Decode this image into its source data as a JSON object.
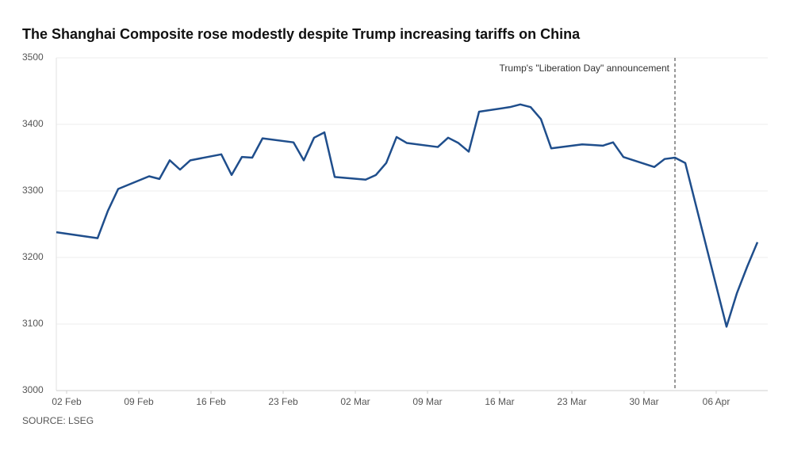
{
  "chart_data": {
    "type": "line",
    "title": "The Shanghai Composite rose modestly despite Trump increasing tariffs on China",
    "source": "SOURCE: LSEG",
    "annotation": {
      "x": "02 Apr",
      "text": "Trump's \"Liberation Day\" announcement"
    },
    "x": [
      "01 Feb",
      "05 Feb",
      "06 Feb",
      "07 Feb",
      "10 Feb",
      "11 Feb",
      "12 Feb",
      "13 Feb",
      "14 Feb",
      "17 Feb",
      "18 Feb",
      "19 Feb",
      "20 Feb",
      "21 Feb",
      "24 Feb",
      "25 Feb",
      "26 Feb",
      "27 Feb",
      "28 Feb",
      "03 Mar",
      "04 Mar",
      "05 Mar",
      "06 Mar",
      "07 Mar",
      "10 Mar",
      "11 Mar",
      "12 Mar",
      "13 Mar",
      "14 Mar",
      "17 Mar",
      "18 Mar",
      "19 Mar",
      "20 Mar",
      "21 Mar",
      "24 Mar",
      "25 Mar",
      "26 Mar",
      "27 Mar",
      "28 Mar",
      "31 Mar",
      "01 Apr",
      "02 Apr",
      "03 Apr",
      "07 Apr",
      "08 Apr",
      "09 Apr",
      "10 Apr"
    ],
    "series": [
      {
        "name": "Shanghai Composite",
        "color": "#1f4e8c",
        "values": [
          3238,
          3229,
          3270,
          3303,
          3322,
          3318,
          3346,
          3332,
          3346,
          3355,
          3324,
          3351,
          3350,
          3379,
          3373,
          3346,
          3380,
          3388,
          3321,
          3317,
          3324,
          3342,
          3381,
          3372,
          3366,
          3380,
          3372,
          3359,
          3419,
          3426,
          3430,
          3426,
          3408,
          3364,
          3370,
          3369,
          3368,
          3373,
          3351,
          3336,
          3348,
          3350,
          3342,
          3096,
          3146,
          3186,
          3223
        ]
      }
    ],
    "xlim": [
      "01 Feb",
      "11 Apr"
    ],
    "xticks": [
      "02 Feb",
      "09 Feb",
      "16 Feb",
      "23 Feb",
      "02 Mar",
      "09 Mar",
      "16 Mar",
      "23 Mar",
      "30 Mar",
      "06 Apr"
    ],
    "ylim": [
      3000,
      3500
    ],
    "yticks": [
      3000,
      3100,
      3200,
      3300,
      3400,
      3500
    ],
    "grid": true
  }
}
